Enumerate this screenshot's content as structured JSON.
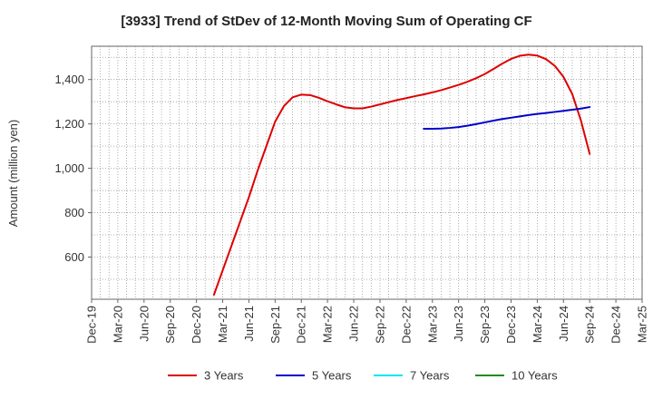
{
  "chart_data": {
    "type": "line",
    "title": "[3933]  Trend of StDev of 12-Month Moving Sum of Operating CF",
    "ylabel": "Amount (million yen)",
    "xlabel": "",
    "x_ticks": [
      "Dec-19",
      "Mar-20",
      "Jun-20",
      "Sep-20",
      "Dec-20",
      "Mar-21",
      "Jun-21",
      "Sep-21",
      "Dec-21",
      "Mar-22",
      "Jun-22",
      "Sep-22",
      "Dec-22",
      "Mar-23",
      "Jun-23",
      "Sep-23",
      "Dec-23",
      "Mar-24",
      "Jun-24",
      "Sep-24",
      "Dec-24",
      "Mar-25"
    ],
    "y_ticks": [
      600,
      800,
      1000,
      1200,
      1400
    ],
    "ylim": [
      410,
      1550
    ],
    "grid": true,
    "legend_position": "bottom",
    "series": [
      {
        "name": "3 Years",
        "color": "#dd0000",
        "x": [
          "2021-02",
          "2021-03",
          "2021-04",
          "2021-05",
          "2021-06",
          "2021-07",
          "2021-08",
          "2021-09",
          "2021-10",
          "2021-11",
          "2021-12",
          "2022-01",
          "2022-02",
          "2022-03",
          "2022-04",
          "2022-05",
          "2022-06",
          "2022-07",
          "2022-08",
          "2022-09",
          "2022-10",
          "2022-11",
          "2022-12",
          "2023-01",
          "2023-02",
          "2023-03",
          "2023-04",
          "2023-05",
          "2023-06",
          "2023-07",
          "2023-08",
          "2023-09",
          "2023-10",
          "2023-11",
          "2023-12",
          "2024-01",
          "2024-02",
          "2024-03",
          "2024-04",
          "2024-05",
          "2024-06",
          "2024-07",
          "2024-08",
          "2024-09"
        ],
        "values": [
          430,
          540,
          650,
          760,
          870,
          990,
          1100,
          1210,
          1280,
          1320,
          1332,
          1330,
          1318,
          1302,
          1288,
          1275,
          1270,
          1270,
          1278,
          1288,
          1298,
          1308,
          1316,
          1325,
          1333,
          1342,
          1352,
          1364,
          1376,
          1390,
          1406,
          1425,
          1448,
          1472,
          1493,
          1507,
          1512,
          1508,
          1492,
          1462,
          1412,
          1335,
          1215,
          1065
        ]
      },
      {
        "name": "5 Years",
        "color": "#0000cc",
        "x": [
          "2023-02",
          "2023-03",
          "2023-04",
          "2023-05",
          "2023-06",
          "2023-07",
          "2023-08",
          "2023-09",
          "2023-10",
          "2023-11",
          "2023-12",
          "2024-01",
          "2024-02",
          "2024-03",
          "2024-04",
          "2024-05",
          "2024-06",
          "2024-07",
          "2024-08",
          "2024-09"
        ],
        "values": [
          1178,
          1178,
          1179,
          1182,
          1186,
          1192,
          1199,
          1207,
          1215,
          1222,
          1228,
          1234,
          1240,
          1245,
          1249,
          1254,
          1259,
          1264,
          1269,
          1276
        ]
      },
      {
        "name": "7 Years",
        "color": "#00e5ee",
        "x": [],
        "values": []
      },
      {
        "name": "10 Years",
        "color": "#228b22",
        "x": [],
        "values": []
      }
    ]
  }
}
